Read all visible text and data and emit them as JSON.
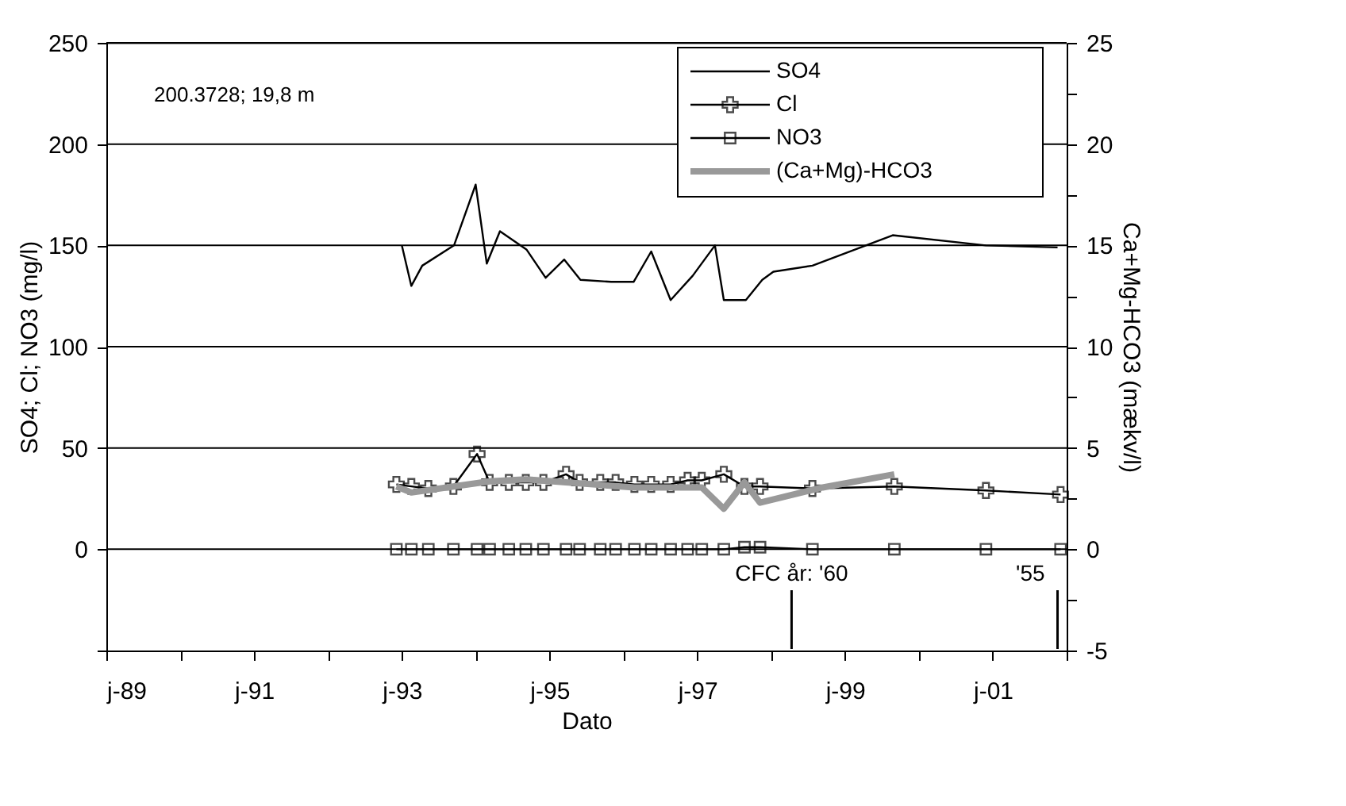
{
  "chart_data": {
    "type": "line",
    "xlabel": "Dato",
    "ylabel": "SO4; Cl; NO3 (mg/l)",
    "y2label": "Ca+Mg-HCO3 (mækv/l)",
    "xlim": [
      "1989-01-01",
      "2002-01-01"
    ],
    "xticks": [
      {
        "value": "1989-01-01",
        "label": "j-89"
      },
      {
        "value": "1990-01-01",
        "label": null
      },
      {
        "value": "1991-01-01",
        "label": "j-91"
      },
      {
        "value": "1992-01-01",
        "label": null
      },
      {
        "value": "1993-01-01",
        "label": "j-93"
      },
      {
        "value": "1994-01-01",
        "label": null
      },
      {
        "value": "1995-01-01",
        "label": "j-95"
      },
      {
        "value": "1996-01-01",
        "label": null
      },
      {
        "value": "1997-01-01",
        "label": "j-97"
      },
      {
        "value": "1998-01-01",
        "label": null
      },
      {
        "value": "1999-01-01",
        "label": "j-99"
      },
      {
        "value": "2000-01-01",
        "label": null
      },
      {
        "value": "2001-01-01",
        "label": "j-01"
      },
      {
        "value": "2002-01-01",
        "label": null
      }
    ],
    "ylim": [
      -50,
      250
    ],
    "yticks": [
      {
        "value": -50,
        "label": null
      },
      {
        "value": -25,
        "label": null
      },
      0,
      {
        "value": 25,
        "label": null
      },
      50,
      {
        "value": 75,
        "label": null
      },
      100,
      {
        "value": 125,
        "label": null
      },
      150,
      {
        "value": 175,
        "label": null
      },
      200,
      {
        "value": 225,
        "label": null
      },
      250
    ],
    "y2lim": [
      -5,
      25
    ],
    "y2ticks": [
      -5,
      {
        "value": -2.5,
        "label": null
      },
      0,
      {
        "value": 2.5,
        "label": null
      },
      5,
      {
        "value": 7.5,
        "label": null
      },
      10,
      {
        "value": 12.5,
        "label": null
      },
      15,
      {
        "value": 17.5,
        "label": null
      },
      20,
      {
        "value": 22.5,
        "label": null
      },
      25
    ],
    "grid": "y",
    "legend": "top right",
    "annotations": [
      "200.3728; 19,8 m"
    ],
    "ref_lines": [
      {
        "axis": "x",
        "value": "1998-04-12",
        "label": "CFC år: '60"
      },
      {
        "axis": "x",
        "value": "2001-11-17",
        "label": "'55"
      }
    ],
    "series": [
      {
        "name": "SO4",
        "color": "#000000",
        "marker": "none",
        "x": [
          "1993-01-01",
          "1993-02-17",
          "1993-04-12",
          "1993-09-16",
          "1994-01-01",
          "1994-02-25",
          "1994-05-01",
          "1994-09-09",
          "1994-12-13",
          "1995-03-15",
          "1995-06-03",
          "1995-11-02",
          "1996-02-21",
          "1996-05-18",
          "1996-08-22",
          "1996-12-09",
          "1997-03-29",
          "1997-05-12",
          "1997-08-29",
          "1997-11-18",
          "1998-01-12",
          "1998-07-24",
          "1999-08-25",
          "2000-11-28",
          "2001-11-17"
        ],
        "values": [
          150,
          130,
          140,
          150,
          180,
          141,
          157,
          148,
          134,
          143,
          133,
          132,
          132,
          147,
          123,
          135,
          150,
          123,
          123,
          133,
          137,
          140,
          155,
          150,
          149
        ]
      },
      {
        "name": "Cl",
        "color": "#000000",
        "marker": "cross",
        "x": [
          "1992-12-05",
          "1993-02-17",
          "1993-05-12",
          "1993-09-13",
          "1994-01-08",
          "1994-03-11",
          "1994-06-14",
          "1994-09-06",
          "1994-12-02",
          "1995-03-24",
          "1995-05-30",
          "1995-09-09",
          "1995-11-24",
          "1996-02-25",
          "1996-05-18",
          "1996-08-22",
          "1996-11-14",
          "1997-01-23",
          "1997-05-12",
          "1997-08-22",
          "1997-11-07",
          "1998-07-24",
          "1999-09-02",
          "2000-11-28",
          "2001-12-02"
        ],
        "values": [
          32,
          31,
          30,
          31,
          47,
          33,
          33,
          33,
          33,
          37,
          33,
          33,
          33,
          32,
          32,
          32,
          34,
          34,
          37,
          31,
          31,
          30,
          31,
          29,
          27
        ]
      },
      {
        "name": "NO3",
        "color": "#000000",
        "marker": "square",
        "x": [
          "1992-12-05",
          "1993-02-17",
          "1993-05-12",
          "1993-09-13",
          "1994-01-08",
          "1994-03-11",
          "1994-06-14",
          "1994-09-06",
          "1994-12-02",
          "1995-03-24",
          "1995-05-30",
          "1995-09-09",
          "1995-11-24",
          "1996-02-25",
          "1996-05-18",
          "1996-08-22",
          "1996-11-14",
          "1997-01-23",
          "1997-05-12",
          "1997-08-22",
          "1997-11-07",
          "1998-07-24",
          "1999-09-02",
          "2000-11-28",
          "2001-12-02"
        ],
        "values": [
          0,
          0,
          0,
          0,
          0,
          0,
          0,
          0,
          0,
          0,
          0,
          0,
          0,
          0,
          0,
          0,
          0,
          0,
          0,
          1,
          1,
          0,
          0,
          0,
          0
        ]
      },
      {
        "name": "(Ca+Mg)-HCO3",
        "color": "#999999",
        "marker": "none",
        "axis": "y2",
        "x": [
          "1992-12-05",
          "1993-02-17",
          "1993-09-13",
          "1994-03-11",
          "1994-09-06",
          "1995-03-24",
          "1996-02-25",
          "1997-01-23",
          "1997-05-12",
          "1997-08-22",
          "1997-11-07",
          "1998-09-13",
          "1999-09-02"
        ],
        "values": [
          3.1,
          2.8,
          3.1,
          3.35,
          3.45,
          3.3,
          3.05,
          3.05,
          2.0,
          3.3,
          2.3,
          3.05,
          3.7
        ]
      }
    ]
  }
}
